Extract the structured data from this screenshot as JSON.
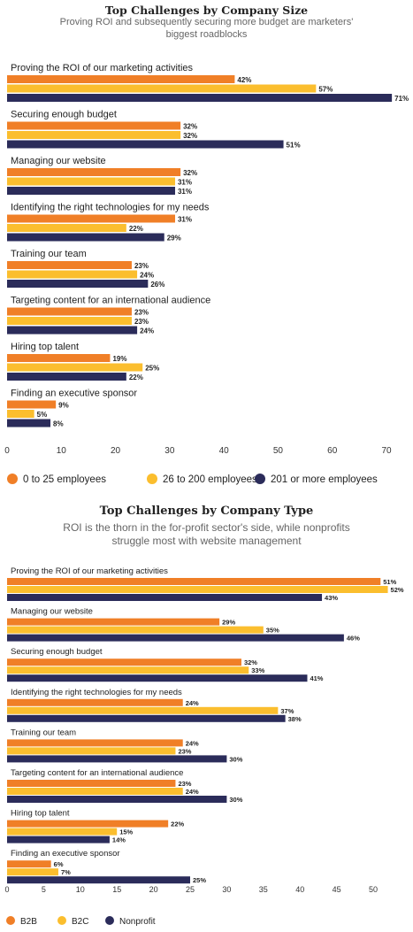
{
  "colors": {
    "b1": "#f07f27",
    "b2": "#fbbe2e",
    "b3": "#2b2c5a"
  },
  "chart_data": [
    {
      "type": "bar",
      "title": "Top Challenges by Company Size",
      "subtitle": "Proving ROI and subsequently securing more budget are marketers' biggest roadblocks",
      "categories": [
        "Proving the ROI of our marketing activities",
        "Securing enough budget",
        "Managing our website",
        "Identifying the right technologies for my needs",
        "Training our team",
        "Targeting content for an international audience",
        "Hiring top talent",
        "Finding an executive sponsor"
      ],
      "series": [
        {
          "name": "0 to 25 employees",
          "values": [
            42,
            32,
            32,
            31,
            23,
            23,
            19,
            9
          ]
        },
        {
          "name": "26 to 200 employees",
          "values": [
            57,
            32,
            31,
            22,
            24,
            23,
            25,
            5
          ]
        },
        {
          "name": "201 or more employees",
          "values": [
            71,
            51,
            31,
            29,
            26,
            24,
            22,
            8
          ]
        }
      ],
      "xticks": [
        "0",
        "10",
        "20",
        "30",
        "40",
        "50",
        "60",
        "70"
      ],
      "xlim": [
        0,
        70
      ],
      "legend_position": "bottom",
      "value_suffix": "%"
    },
    {
      "type": "bar",
      "title": "Top Challenges by Company Type",
      "subtitle": "ROI is the thorn in the for-profit sector's side, while nonprofits struggle most with website management",
      "categories": [
        "Proving the ROI of our marketing activities",
        "Managing our website",
        "Securing enough budget",
        "Identifying the right technologies for my needs",
        "Training our team",
        "Targeting content for an international audience",
        "Hiring top talent",
        "Finding an executive sponsor"
      ],
      "series": [
        {
          "name": "B2B",
          "values": [
            51,
            29,
            32,
            24,
            24,
            23,
            22,
            6
          ]
        },
        {
          "name": "B2C",
          "values": [
            52,
            35,
            33,
            37,
            23,
            24,
            15,
            7
          ]
        },
        {
          "name": "Nonprofit",
          "values": [
            43,
            46,
            41,
            38,
            30,
            30,
            14,
            25
          ]
        }
      ],
      "xticks": [
        "0",
        "5",
        "10",
        "15",
        "20",
        "25",
        "30",
        "35",
        "40",
        "45",
        "50"
      ],
      "xlim": [
        0,
        50
      ],
      "legend_position": "bottom",
      "value_suffix": "%"
    }
  ]
}
